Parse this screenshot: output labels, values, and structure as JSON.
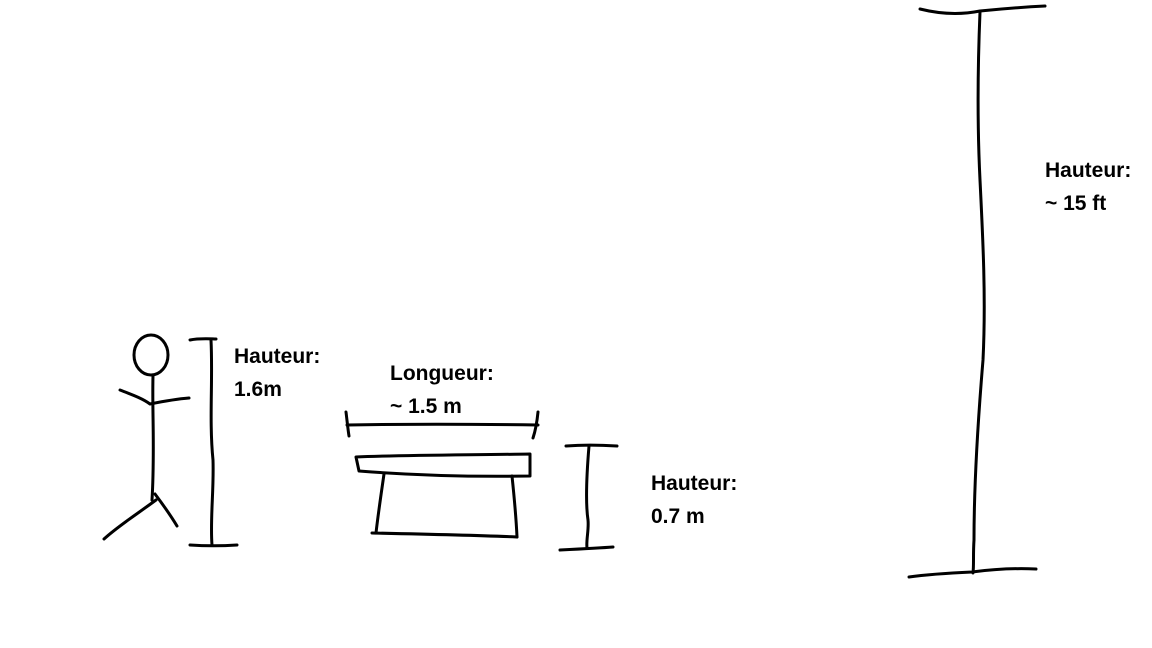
{
  "labels": {
    "person": {
      "title": "Hauteur:",
      "value": "1.6m"
    },
    "table_length": {
      "title": "Longueur:",
      "value": "~ 1.5 m"
    },
    "table_height": {
      "title": "Hauteur:",
      "value": "0.7 m"
    },
    "pole": {
      "title": "Hauteur:",
      "value": "~ 15 ft"
    }
  },
  "colors": {
    "ink": "#000000",
    "background": "#ffffff"
  }
}
